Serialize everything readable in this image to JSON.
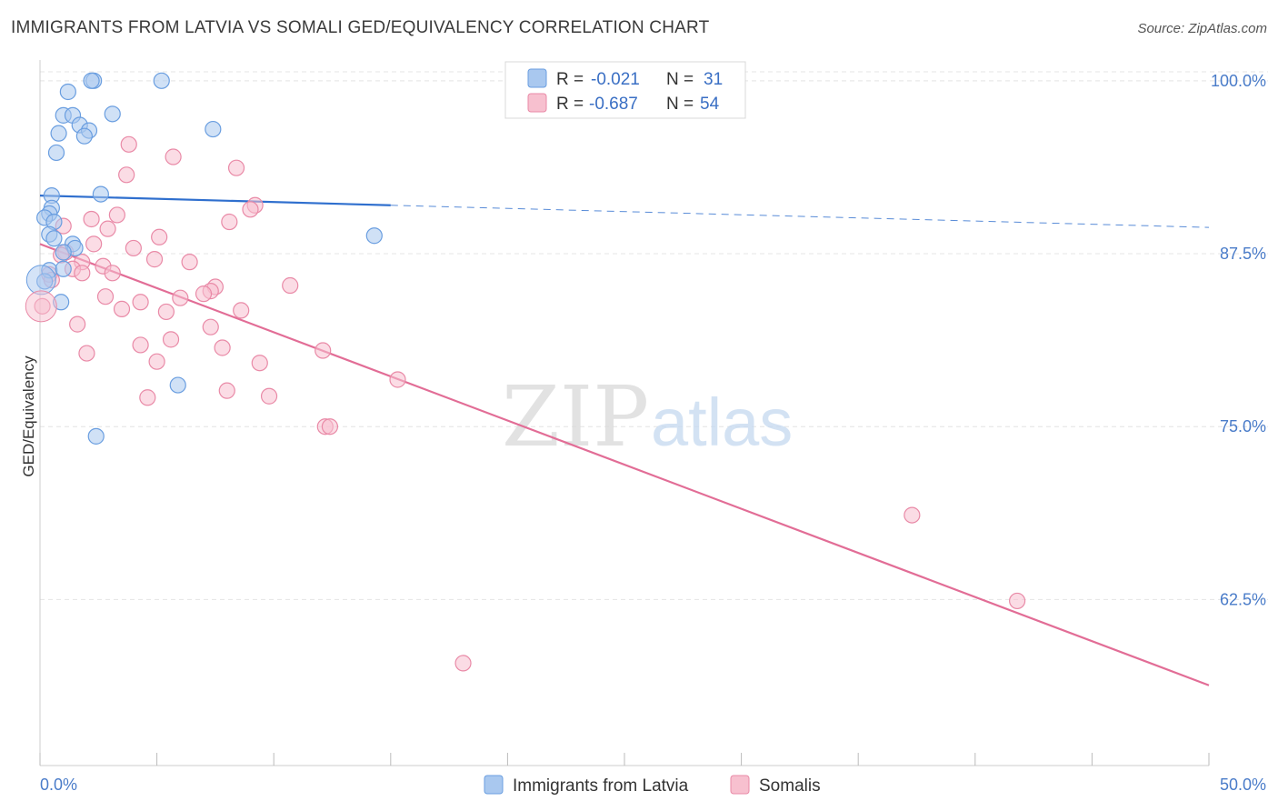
{
  "header": {
    "title": "IMMIGRANTS FROM LATVIA VS SOMALI GED/EQUIVALENCY CORRELATION CHART",
    "source": "Source: ZipAtlas.com"
  },
  "watermark": {
    "zip": "ZIP",
    "atlas": "atlas"
  },
  "legend": {
    "r_label": "R =",
    "n_label": "N =",
    "rows": [
      {
        "r": "-0.021",
        "n": "31",
        "color": "#a9c8ef",
        "stroke": "#6a9ee0"
      },
      {
        "r": "-0.687",
        "n": "54",
        "color": "#f7c0cf",
        "stroke": "#e98aa7"
      }
    ]
  },
  "bottom_legend": [
    {
      "label": "Immigrants from Latvia",
      "color": "#a9c8ef",
      "stroke": "#6a9ee0"
    },
    {
      "label": "Somalis",
      "color": "#f7c0cf",
      "stroke": "#e98aa7"
    }
  ],
  "chart_data": {
    "type": "scatter",
    "title": "IMMIGRANTS FROM LATVIA VS SOMALI GED/EQUIVALENCY CORRELATION CHART",
    "xlabel": "",
    "ylabel": "GED/Equivalency",
    "xlim": [
      0,
      50
    ],
    "ylim": [
      50.5,
      101.5
    ],
    "x_tick_labels": [
      "0.0%",
      "50.0%"
    ],
    "y_ticks": [
      62.5,
      75.0,
      87.5,
      100.0
    ],
    "y_tick_labels": [
      "62.5%",
      "75.0%",
      "87.5%",
      "100.0%"
    ],
    "grid": true,
    "legend_placement": "top-center",
    "series": [
      {
        "name": "Immigrants from Latvia",
        "color": "#6a9ee0",
        "fill": "#a9c8ef",
        "trend": {
          "x0": 0,
          "y0": 91.7,
          "x1": 15,
          "y1": 91.0,
          "x_dash_end": 50,
          "y_dash_end": 89.4,
          "color": "#2f6fce"
        },
        "points": [
          [
            2.3,
            100.0
          ],
          [
            2.2,
            100.0
          ],
          [
            5.2,
            100.0
          ],
          [
            1.2,
            99.2
          ],
          [
            1.0,
            97.5
          ],
          [
            1.4,
            97.5
          ],
          [
            3.1,
            97.6
          ],
          [
            1.7,
            96.8
          ],
          [
            2.1,
            96.4
          ],
          [
            0.8,
            96.2
          ],
          [
            1.9,
            96.0
          ],
          [
            7.4,
            96.5
          ],
          [
            0.7,
            94.8
          ],
          [
            0.5,
            91.7
          ],
          [
            2.6,
            91.8
          ],
          [
            0.5,
            90.8
          ],
          [
            0.4,
            90.4
          ],
          [
            0.2,
            90.1
          ],
          [
            0.6,
            89.8
          ],
          [
            0.4,
            88.9
          ],
          [
            0.6,
            88.6
          ],
          [
            1.4,
            88.2
          ],
          [
            1.5,
            87.9
          ],
          [
            1.0,
            87.6
          ],
          [
            14.3,
            88.8
          ],
          [
            0.4,
            86.3
          ],
          [
            1.0,
            86.4
          ],
          [
            0.2,
            85.5
          ],
          [
            0.9,
            84.0
          ],
          [
            5.9,
            78.0
          ],
          [
            2.4,
            74.3
          ]
        ]
      },
      {
        "name": "Somalis",
        "color": "#e98aa7",
        "fill": "#f7c0cf",
        "trend": {
          "x0": 0,
          "y0": 88.2,
          "x1": 50,
          "y1": 56.3,
          "color": "#e26d96"
        },
        "points": [
          [
            3.8,
            95.4
          ],
          [
            5.7,
            94.5
          ],
          [
            8.4,
            93.7
          ],
          [
            3.7,
            93.2
          ],
          [
            9.2,
            91.0
          ],
          [
            9.0,
            90.7
          ],
          [
            2.2,
            90.0
          ],
          [
            3.3,
            90.3
          ],
          [
            8.1,
            89.8
          ],
          [
            1.0,
            89.5
          ],
          [
            2.9,
            89.3
          ],
          [
            5.1,
            88.7
          ],
          [
            2.3,
            88.2
          ],
          [
            4.0,
            87.9
          ],
          [
            1.1,
            87.6
          ],
          [
            0.9,
            87.4
          ],
          [
            4.9,
            87.1
          ],
          [
            6.4,
            86.9
          ],
          [
            1.8,
            86.9
          ],
          [
            2.7,
            86.6
          ],
          [
            1.4,
            86.4
          ],
          [
            1.8,
            86.1
          ],
          [
            0.4,
            86.0
          ],
          [
            3.1,
            86.1
          ],
          [
            0.5,
            85.6
          ],
          [
            10.7,
            85.2
          ],
          [
            7.5,
            85.1
          ],
          [
            7.3,
            84.8
          ],
          [
            7.0,
            84.6
          ],
          [
            2.8,
            84.4
          ],
          [
            6.0,
            84.3
          ],
          [
            4.3,
            84.0
          ],
          [
            3.5,
            83.5
          ],
          [
            8.6,
            83.4
          ],
          [
            5.4,
            83.3
          ],
          [
            0.1,
            83.7
          ],
          [
            1.6,
            82.4
          ],
          [
            7.3,
            82.2
          ],
          [
            5.6,
            81.3
          ],
          [
            4.3,
            80.9
          ],
          [
            7.8,
            80.7
          ],
          [
            12.1,
            80.5
          ],
          [
            2.0,
            80.3
          ],
          [
            5.0,
            79.7
          ],
          [
            9.4,
            79.6
          ],
          [
            15.3,
            78.4
          ],
          [
            4.6,
            77.1
          ],
          [
            8.0,
            77.6
          ],
          [
            9.8,
            77.2
          ],
          [
            12.2,
            75.0
          ],
          [
            12.4,
            75.0
          ],
          [
            37.3,
            68.6
          ],
          [
            41.8,
            62.4
          ],
          [
            18.1,
            57.9
          ]
        ]
      }
    ]
  }
}
